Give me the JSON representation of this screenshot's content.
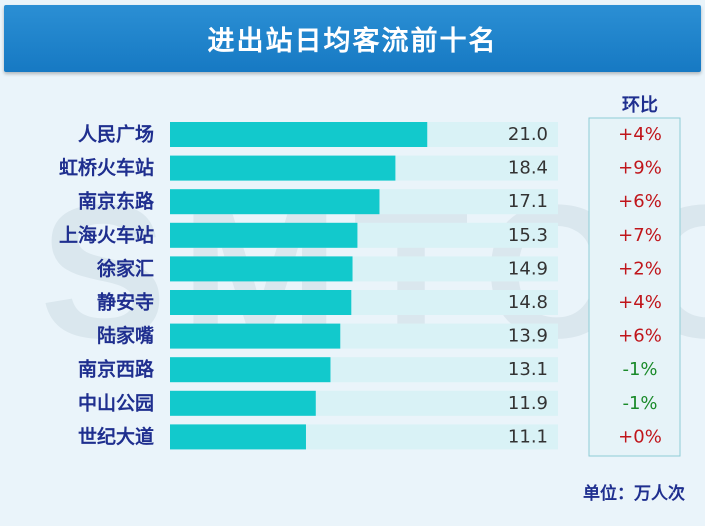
{
  "title": "进出站日均客流前十名",
  "watermark": "SMTCC",
  "unit_label": "单位：万人次",
  "change_header": "环比",
  "colors": {
    "bar": "#12c9cc",
    "track": "#d9f2f6",
    "positive": "#c0151b",
    "negative": "#1a8a2a",
    "header": "#1b80c9"
  },
  "chart_data": {
    "type": "bar",
    "orientation": "horizontal",
    "categories": [
      "人民广场",
      "虹桥火车站",
      "南京东路",
      "上海火车站",
      "徐家汇",
      "静安寺",
      "陆家嘴",
      "南京西路",
      "中山公园",
      "世纪大道"
    ],
    "values": [
      21.0,
      18.4,
      17.1,
      15.3,
      14.9,
      14.8,
      13.9,
      13.1,
      11.9,
      11.1
    ],
    "value_labels": [
      "21.0",
      "18.4",
      "17.1",
      "15.3",
      "14.9",
      "14.8",
      "13.9",
      "13.1",
      "11.9",
      "11.1"
    ],
    "changes": [
      "+4%",
      "+9%",
      "+6%",
      "+7%",
      "+2%",
      "+4%",
      "+6%",
      "-1%",
      "-1%",
      "+0%"
    ],
    "xlim": [
      0,
      40
    ]
  }
}
